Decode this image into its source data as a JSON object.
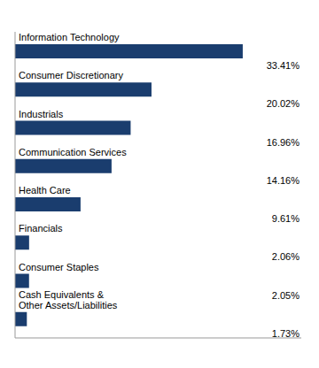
{
  "chart_data": {
    "type": "bar",
    "orientation": "horizontal",
    "categories": [
      "Information Technology",
      "Consumer Discretionary",
      "Industrials",
      "Communication Services",
      "Health Care",
      "Financials",
      "Consumer Staples",
      "Cash Equivalents &\nOther Assets/Liabilities"
    ],
    "values": [
      33.41,
      20.02,
      16.96,
      14.16,
      9.61,
      2.06,
      2.05,
      1.73
    ],
    "value_labels": [
      "33.41%",
      "20.02%",
      "16.96%",
      "14.16%",
      "9.61%",
      "2.06%",
      "2.05%",
      "1.73%"
    ],
    "data_labels": true,
    "color": "#1a3d6e",
    "xlim": [
      0,
      42
    ],
    "tick_labels": false,
    "grid": false
  }
}
